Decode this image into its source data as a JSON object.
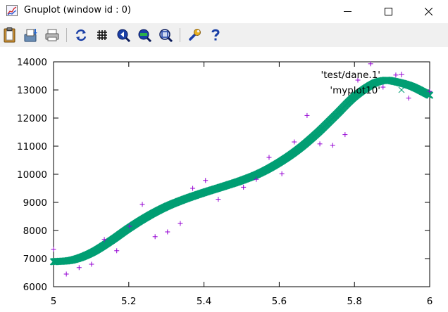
{
  "window": {
    "title": "Gnuplot (window id : 0)",
    "controls": [
      "minimize",
      "maximize",
      "close"
    ]
  },
  "toolbar": {
    "buttons": [
      {
        "name": "copy-clipboard",
        "icon": "clipboard-icon"
      },
      {
        "name": "save",
        "icon": "save-icon"
      },
      {
        "name": "print",
        "icon": "printer-icon"
      },
      {
        "name": "replot",
        "icon": "replot-icon"
      },
      {
        "name": "toggle-grid",
        "icon": "grid-icon"
      },
      {
        "name": "zoom-previous",
        "icon": "zoom-previous-icon"
      },
      {
        "name": "zoom-next",
        "icon": "zoom-next-icon"
      },
      {
        "name": "autoscale",
        "icon": "autoscale-icon"
      },
      {
        "name": "options",
        "icon": "wrench-icon"
      },
      {
        "name": "help",
        "icon": "help-icon"
      }
    ]
  },
  "colors": {
    "series1": "#9400d3",
    "series2": "#009e73",
    "toolbar_bg": "#f0f0f0"
  },
  "chart_data": {
    "type": "scatter",
    "xlim": [
      5,
      6
    ],
    "ylim": [
      6000,
      14000
    ],
    "x_ticks": [
      "5",
      "5.2",
      "5.4",
      "5.6",
      "5.8",
      "6"
    ],
    "y_ticks": [
      "6000",
      "7000",
      "8000",
      "9000",
      "10000",
      "11000",
      "12000",
      "13000",
      "14000"
    ],
    "legend_position": "top-right",
    "grid": false,
    "series": [
      {
        "name": "'test/dane.1'",
        "marker": "plus",
        "points": [
          [
            5.0,
            7330
          ],
          [
            5.034,
            6450
          ],
          [
            5.068,
            6680
          ],
          [
            5.101,
            6800
          ],
          [
            5.135,
            7680
          ],
          [
            5.168,
            7280
          ],
          [
            5.202,
            8150
          ],
          [
            5.236,
            8930
          ],
          [
            5.27,
            7780
          ],
          [
            5.303,
            7950
          ],
          [
            5.337,
            8250
          ],
          [
            5.37,
            9500
          ],
          [
            5.404,
            9780
          ],
          [
            5.438,
            9110
          ],
          [
            5.505,
            9540
          ],
          [
            5.539,
            9820
          ],
          [
            5.573,
            10600
          ],
          [
            5.607,
            10020
          ],
          [
            5.64,
            11150
          ],
          [
            5.674,
            12090
          ],
          [
            5.708,
            11080
          ],
          [
            5.742,
            11030
          ],
          [
            5.775,
            11410
          ],
          [
            5.809,
            13350
          ],
          [
            5.843,
            13930
          ],
          [
            5.876,
            13100
          ],
          [
            5.91,
            13530
          ],
          [
            5.944,
            12710
          ],
          [
            6.0,
            12950
          ]
        ]
      },
      {
        "name": "'myplot10'",
        "marker": "cross",
        "x_start": 5.0,
        "x_end": 6.0,
        "points": [
          [
            5.0,
            6890
          ],
          [
            5.05,
            6950
          ],
          [
            5.1,
            7200
          ],
          [
            5.15,
            7610
          ],
          [
            5.2,
            8080
          ],
          [
            5.25,
            8500
          ],
          [
            5.3,
            8850
          ],
          [
            5.35,
            9120
          ],
          [
            5.4,
            9350
          ],
          [
            5.45,
            9560
          ],
          [
            5.5,
            9780
          ],
          [
            5.55,
            10050
          ],
          [
            5.6,
            10420
          ],
          [
            5.65,
            10880
          ],
          [
            5.7,
            11450
          ],
          [
            5.75,
            12100
          ],
          [
            5.8,
            12760
          ],
          [
            5.85,
            13220
          ],
          [
            5.88,
            13340
          ],
          [
            5.9,
            13320
          ],
          [
            5.95,
            13140
          ],
          [
            6.0,
            12810
          ]
        ]
      }
    ]
  }
}
